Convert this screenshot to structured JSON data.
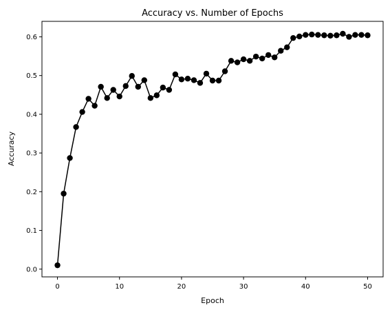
{
  "chart_data": {
    "type": "line",
    "title": "Accuracy vs. Number of Epochs",
    "xlabel": "Epoch",
    "ylabel": "Accuracy",
    "xlim": [
      -2.5,
      52.5
    ],
    "ylim": [
      -0.02,
      0.64
    ],
    "xticks": [
      0,
      10,
      20,
      30,
      40,
      50
    ],
    "xtick_labels": [
      "0",
      "10",
      "20",
      "30",
      "40",
      "50"
    ],
    "yticks": [
      0.0,
      0.1,
      0.2,
      0.3,
      0.4,
      0.5,
      0.6
    ],
    "ytick_labels": [
      "0.0",
      "0.1",
      "0.2",
      "0.3",
      "0.4",
      "0.5",
      "0.6"
    ],
    "grid": false,
    "line_color": "#000000",
    "marker": "circle",
    "series": [
      {
        "x": [
          0,
          1,
          2,
          3,
          4,
          5,
          6,
          7,
          8,
          9,
          10,
          11,
          12,
          13,
          14,
          15,
          16,
          17,
          18,
          19,
          20,
          21,
          22,
          23,
          24,
          25,
          26,
          27,
          28,
          29,
          30,
          31,
          32,
          33,
          34,
          35,
          36,
          37,
          38,
          39,
          40,
          41,
          42,
          43,
          44,
          45,
          46,
          47,
          48,
          49,
          50
        ],
        "values": [
          0.01,
          0.195,
          0.287,
          0.367,
          0.406,
          0.44,
          0.422,
          0.471,
          0.442,
          0.463,
          0.446,
          0.473,
          0.499,
          0.471,
          0.488,
          0.442,
          0.449,
          0.469,
          0.463,
          0.503,
          0.49,
          0.492,
          0.488,
          0.481,
          0.505,
          0.487,
          0.487,
          0.511,
          0.538,
          0.534,
          0.542,
          0.538,
          0.549,
          0.544,
          0.553,
          0.547,
          0.564,
          0.573,
          0.597,
          0.601,
          0.605,
          0.606,
          0.605,
          0.604,
          0.603,
          0.604,
          0.608,
          0.6,
          0.605,
          0.605,
          0.604
        ]
      }
    ]
  }
}
